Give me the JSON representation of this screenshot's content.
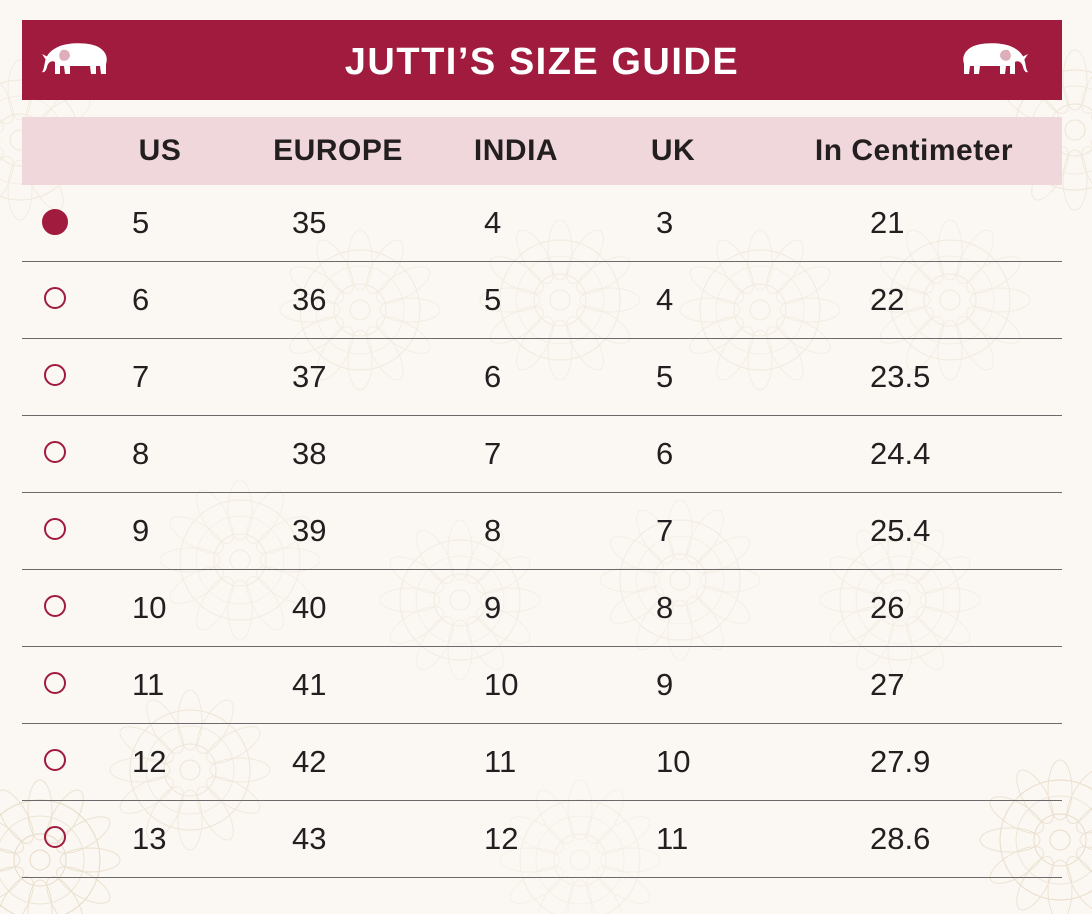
{
  "title": "JUTTI’S SIZE GUIDE",
  "colors": {
    "brand": "#a01b3d",
    "header_bg": "#f0d7dc",
    "page_bg": "#fbf8f4"
  },
  "icons": {
    "banner_left": "elephant-icon",
    "banner_right": "elephant-icon",
    "row_selector": "radio-icon"
  },
  "columns": {
    "us": "US",
    "europe": "EUROPE",
    "india": "INDIA",
    "uk": "UK",
    "cm": "In Centimeter"
  },
  "selected_index": 0,
  "rows": [
    {
      "us": "5",
      "europe": "35",
      "india": "4",
      "uk": "3",
      "cm": "21"
    },
    {
      "us": "6",
      "europe": "36",
      "india": "5",
      "uk": "4",
      "cm": "22"
    },
    {
      "us": "7",
      "europe": "37",
      "india": "6",
      "uk": "5",
      "cm": "23.5"
    },
    {
      "us": "8",
      "europe": "38",
      "india": "7",
      "uk": "6",
      "cm": "24.4"
    },
    {
      "us": "9",
      "europe": "39",
      "india": "8",
      "uk": "7",
      "cm": "25.4"
    },
    {
      "us": "10",
      "europe": "40",
      "india": "9",
      "uk": "8",
      "cm": "26"
    },
    {
      "us": "11",
      "europe": "41",
      "india": "10",
      "uk": "9",
      "cm": "27"
    },
    {
      "us": "12",
      "europe": "42",
      "india": "11",
      "uk": "10",
      "cm": "27.9"
    },
    {
      "us": "13",
      "europe": "43",
      "india": "12",
      "uk": "11",
      "cm": "28.6"
    }
  ]
}
